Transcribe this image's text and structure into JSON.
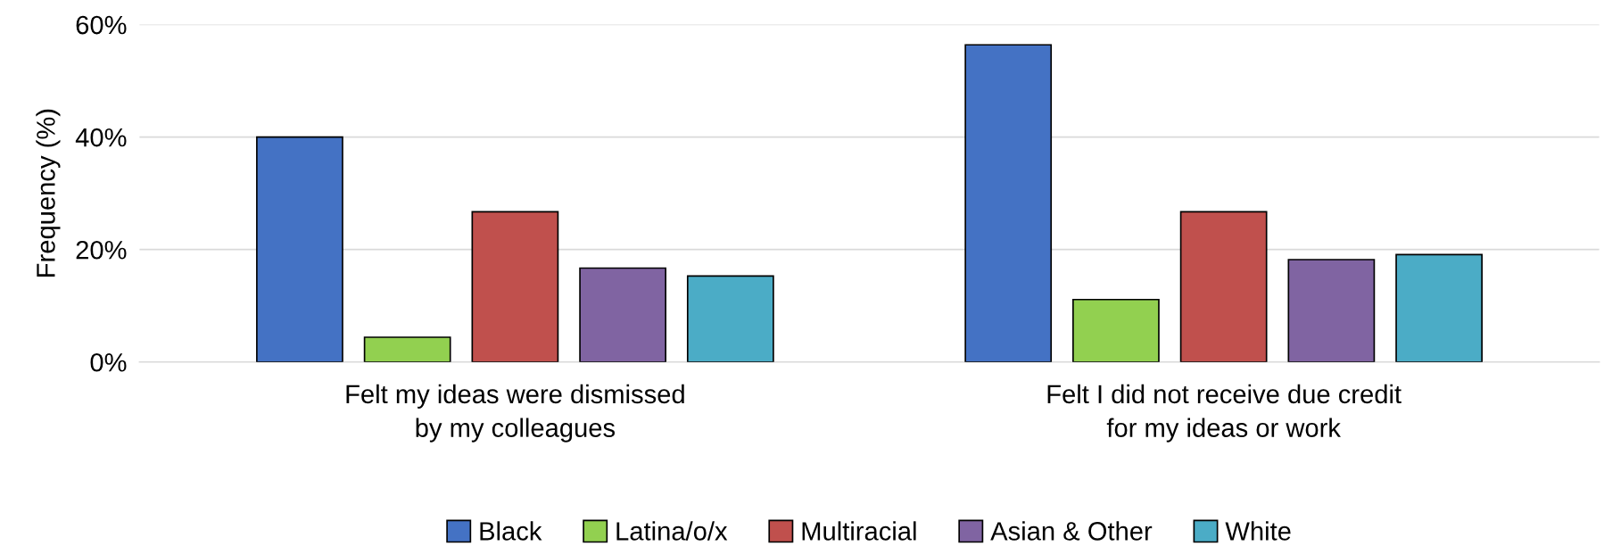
{
  "chart_data": {
    "type": "bar",
    "ylabel": "Frequency (%)",
    "categories": [
      "Felt my ideas were dismissed\nby my colleagues",
      "Felt I did not receive due credit\nfor my ideas or work"
    ],
    "series": [
      {
        "name": "Black",
        "color": "#4472c4",
        "values": [
          40.0,
          56.4
        ]
      },
      {
        "name": "Latina/o/x",
        "color": "#92d050",
        "values": [
          4.4,
          11.1
        ]
      },
      {
        "name": "Multiracial",
        "color": "#c0504d",
        "values": [
          26.7,
          26.7
        ]
      },
      {
        "name": "Asian & Other",
        "color": "#8064a2",
        "values": [
          16.7,
          18.2
        ]
      },
      {
        "name": "White",
        "color": "#4bacc6",
        "values": [
          15.3,
          19.1
        ]
      }
    ],
    "ylim": [
      0,
      60
    ],
    "yticks": [
      {
        "value": 0,
        "label": "0%"
      },
      {
        "value": 20,
        "label": "20%"
      },
      {
        "value": 40,
        "label": "40%"
      },
      {
        "value": 60,
        "label": "60%"
      }
    ],
    "grid": "y",
    "legend": "bottom"
  }
}
